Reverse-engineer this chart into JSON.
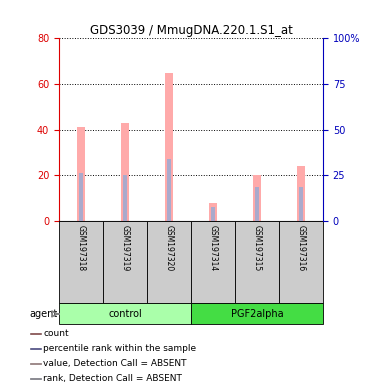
{
  "title": "GDS3039 / MmugDNA.220.1.S1_at",
  "samples": [
    "GSM197318",
    "GSM197319",
    "GSM197320",
    "GSM197314",
    "GSM197315",
    "GSM197316"
  ],
  "pink_bars": [
    41,
    43,
    65,
    8,
    20,
    24
  ],
  "blue_bars": [
    21,
    20,
    27,
    6,
    15,
    15
  ],
  "left_ylim": [
    0,
    80
  ],
  "right_ylim": [
    0,
    100
  ],
  "left_yticks": [
    0,
    20,
    40,
    60,
    80
  ],
  "right_yticks": [
    0,
    25,
    50,
    75,
    100
  ],
  "right_yticklabels": [
    "0",
    "25",
    "50",
    "75",
    "100%"
  ],
  "left_tick_color": "#dd0000",
  "right_tick_color": "#0000bb",
  "pink_color": "#ffaaaa",
  "blue_color": "#aaaacc",
  "control_group_color": "#aaffaa",
  "pgf_group_color": "#44dd44",
  "sample_bg_color": "#cccccc",
  "group_defs": [
    {
      "label": "control",
      "start": 0,
      "end": 3,
      "color": "#aaffaa"
    },
    {
      "label": "PGF2alpha",
      "start": 3,
      "end": 6,
      "color": "#44dd44"
    }
  ],
  "legend_items": [
    {
      "color": "#cc0000",
      "label": "count"
    },
    {
      "color": "#0000cc",
      "label": "percentile rank within the sample"
    },
    {
      "color": "#ffaaaa",
      "label": "value, Detection Call = ABSENT"
    },
    {
      "color": "#aaaacc",
      "label": "rank, Detection Call = ABSENT"
    }
  ]
}
